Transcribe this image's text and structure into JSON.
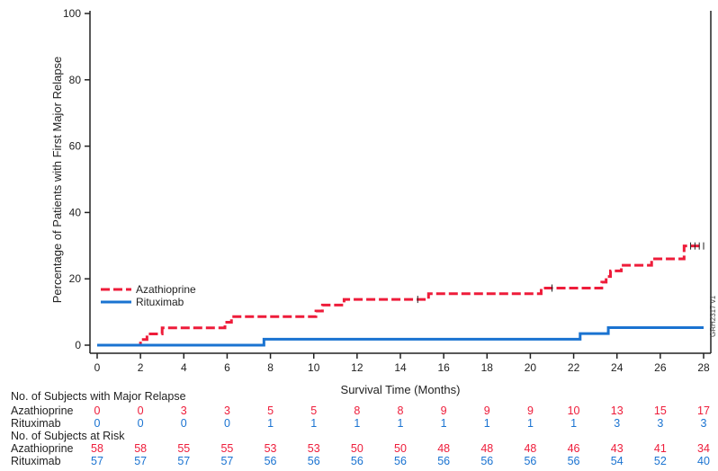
{
  "chart_data": {
    "type": "line",
    "step": true,
    "xlabel": "Survival Time (Months)",
    "ylabel": "Percentage of Patients with First Major Relapse",
    "xlim": [
      0,
      28
    ],
    "ylim": [
      0,
      100
    ],
    "xticks": [
      0,
      2,
      4,
      6,
      8,
      10,
      12,
      14,
      16,
      18,
      20,
      22,
      24,
      26,
      28
    ],
    "yticks": [
      0,
      20,
      40,
      60,
      80,
      100
    ],
    "grid": false,
    "legend_placement": "center-left",
    "watermark": "GRH2317 v1",
    "series": [
      {
        "name": "Azathioprine",
        "color": "#ee1c3a",
        "style": "dashed",
        "x": [
          0,
          2.0,
          2.3,
          3.0,
          5.9,
          6.2,
          10.1,
          10.4,
          11.4,
          15.3,
          20.5,
          23.3,
          23.5,
          23.7,
          24.2,
          25.6,
          27.1,
          28
        ],
        "y": [
          0,
          1.7,
          3.4,
          5.2,
          6.9,
          8.6,
          10.3,
          12.1,
          13.8,
          15.5,
          17.2,
          19.0,
          20.7,
          22.4,
          24.1,
          26.0,
          29.9,
          29.9
        ],
        "censored_x": [
          14.8,
          21.0,
          27.4,
          27.6,
          27.8,
          28
        ]
      },
      {
        "name": "Rituximab",
        "color": "#1a73d1",
        "style": "solid",
        "x": [
          0,
          7.7,
          22.3,
          23.6,
          28
        ],
        "y": [
          0,
          1.8,
          3.5,
          5.3,
          5.3
        ],
        "censored_x": []
      }
    ],
    "risk_table": {
      "relapse_title": "No. of Subjects with Major Relapse",
      "risk_title": "No. of Subjects at Risk",
      "relapse": [
        {
          "name": "Azathioprine",
          "values": [
            0,
            0,
            3,
            3,
            5,
            5,
            8,
            8,
            9,
            9,
            9,
            10,
            13,
            15,
            17
          ]
        },
        {
          "name": "Rituximab",
          "values": [
            0,
            0,
            0,
            0,
            1,
            1,
            1,
            1,
            1,
            1,
            1,
            1,
            3,
            3,
            3
          ]
        }
      ],
      "at_risk": [
        {
          "name": "Azathioprine",
          "values": [
            58,
            58,
            55,
            55,
            53,
            53,
            50,
            50,
            48,
            48,
            48,
            46,
            43,
            41,
            34
          ]
        },
        {
          "name": "Rituximab",
          "values": [
            57,
            57,
            57,
            57,
            56,
            56,
            56,
            56,
            56,
            56,
            56,
            56,
            54,
            52,
            40
          ]
        }
      ]
    }
  }
}
